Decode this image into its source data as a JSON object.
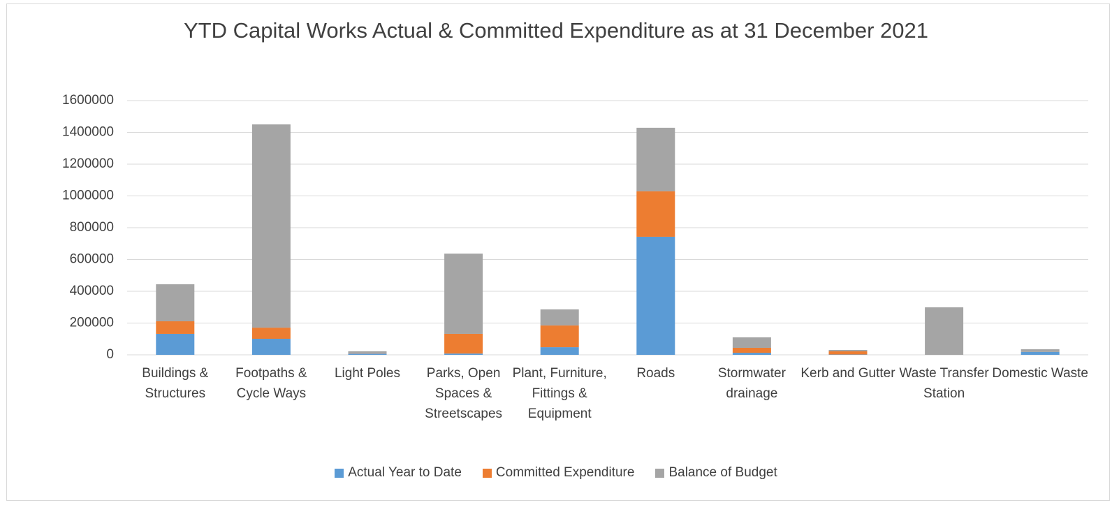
{
  "chart_data": {
    "type": "stacked_bar",
    "title": "YTD Capital Works Actual & Committed Expenditure as at 31 December 2021",
    "categories": [
      "Buildings & Structures",
      "Footpaths & Cycle Ways",
      "Light Poles",
      "Parks, Open Spaces & Streetscapes",
      "Plant, Furniture, Fittings & Equipment",
      "Roads",
      "Stormwater drainage",
      "Kerb and Gutter",
      "Waste Transfer Station",
      "Domestic Waste"
    ],
    "series": [
      {
        "name": "Actual Year to Date",
        "color": "#5b9bd5",
        "values": [
          132000,
          101000,
          8000,
          8000,
          48000,
          743000,
          13000,
          2000,
          0,
          18000
        ]
      },
      {
        "name": "Committed Expenditure",
        "color": "#ed7d31",
        "values": [
          79000,
          70000,
          2000,
          124000,
          137000,
          286000,
          31000,
          20000,
          0,
          0
        ]
      },
      {
        "name": "Balance of Budget",
        "color": "#a5a5a5",
        "values": [
          233000,
          1279000,
          12000,
          505000,
          101000,
          400000,
          66000,
          9000,
          299000,
          17000
        ]
      }
    ],
    "ylim": [
      0,
      1600000
    ],
    "yticks": [
      0,
      200000,
      400000,
      600000,
      800000,
      1000000,
      1200000,
      1400000,
      1600000
    ],
    "grid": true,
    "legend": "bottom"
  }
}
